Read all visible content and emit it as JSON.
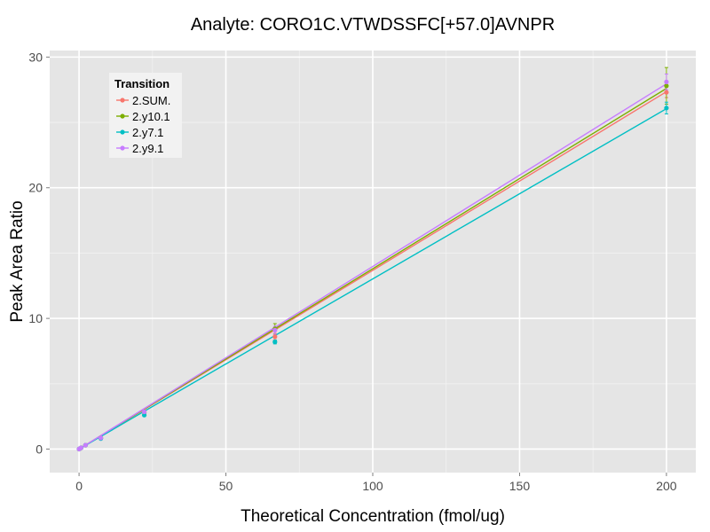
{
  "chart_data": {
    "type": "scatter",
    "title": "Analyte: CORO1C.VTWDSSFC[+57.0]AVNPR",
    "xlabel": "Theoretical Concentration (fmol/ug)",
    "ylabel": "Peak Area Ratio",
    "xlim": [
      -10,
      210
    ],
    "ylim": [
      -1.8,
      30.5
    ],
    "xticks": [
      0,
      50,
      100,
      150,
      200
    ],
    "yticks": [
      0,
      10,
      20,
      30
    ],
    "grid": true,
    "legend": {
      "title": "Transition",
      "placement": "top-left"
    },
    "series": [
      {
        "name": "2.SUM.",
        "color": "#F8766D",
        "x": [
          0,
          0.2,
          0.7,
          2.2,
          7.4,
          22.2,
          66.7,
          200
        ],
        "y": [
          0.0,
          0.03,
          0.1,
          0.3,
          0.85,
          2.8,
          8.6,
          27.3
        ],
        "err": [
          0,
          0,
          0,
          0,
          0,
          0.1,
          0.25,
          0.4
        ],
        "fit": [
          0,
          27.35
        ]
      },
      {
        "name": "2.y10.1",
        "color": "#7CAE00",
        "x": [
          0,
          0.2,
          0.7,
          2.2,
          7.4,
          22.2,
          66.7,
          200
        ],
        "y": [
          0.0,
          0.03,
          0.1,
          0.3,
          0.85,
          2.85,
          9.2,
          27.8
        ],
        "err": [
          0,
          0,
          0,
          0,
          0,
          0.1,
          0.4,
          1.4
        ],
        "fit": [
          0,
          27.6
        ]
      },
      {
        "name": "2.y7.1",
        "color": "#00BFC4",
        "x": [
          0,
          0.2,
          0.7,
          2.2,
          7.4,
          22.2,
          66.7,
          200
        ],
        "y": [
          0.0,
          0.03,
          0.1,
          0.3,
          0.8,
          2.6,
          8.2,
          26.1
        ],
        "err": [
          0,
          0,
          0,
          0,
          0,
          0.1,
          0.15,
          0.45
        ],
        "fit": [
          0,
          26.05
        ]
      },
      {
        "name": "2.y9.1",
        "color": "#C77CFF",
        "x": [
          0,
          0.2,
          0.7,
          2.2,
          7.4,
          22.2,
          66.7,
          200
        ],
        "y": [
          0.0,
          0.03,
          0.1,
          0.3,
          0.85,
          2.85,
          9.1,
          28.1
        ],
        "err": [
          0,
          0,
          0,
          0,
          0,
          0.1,
          0.3,
          0.6
        ],
        "fit": [
          0,
          27.95
        ]
      }
    ]
  }
}
